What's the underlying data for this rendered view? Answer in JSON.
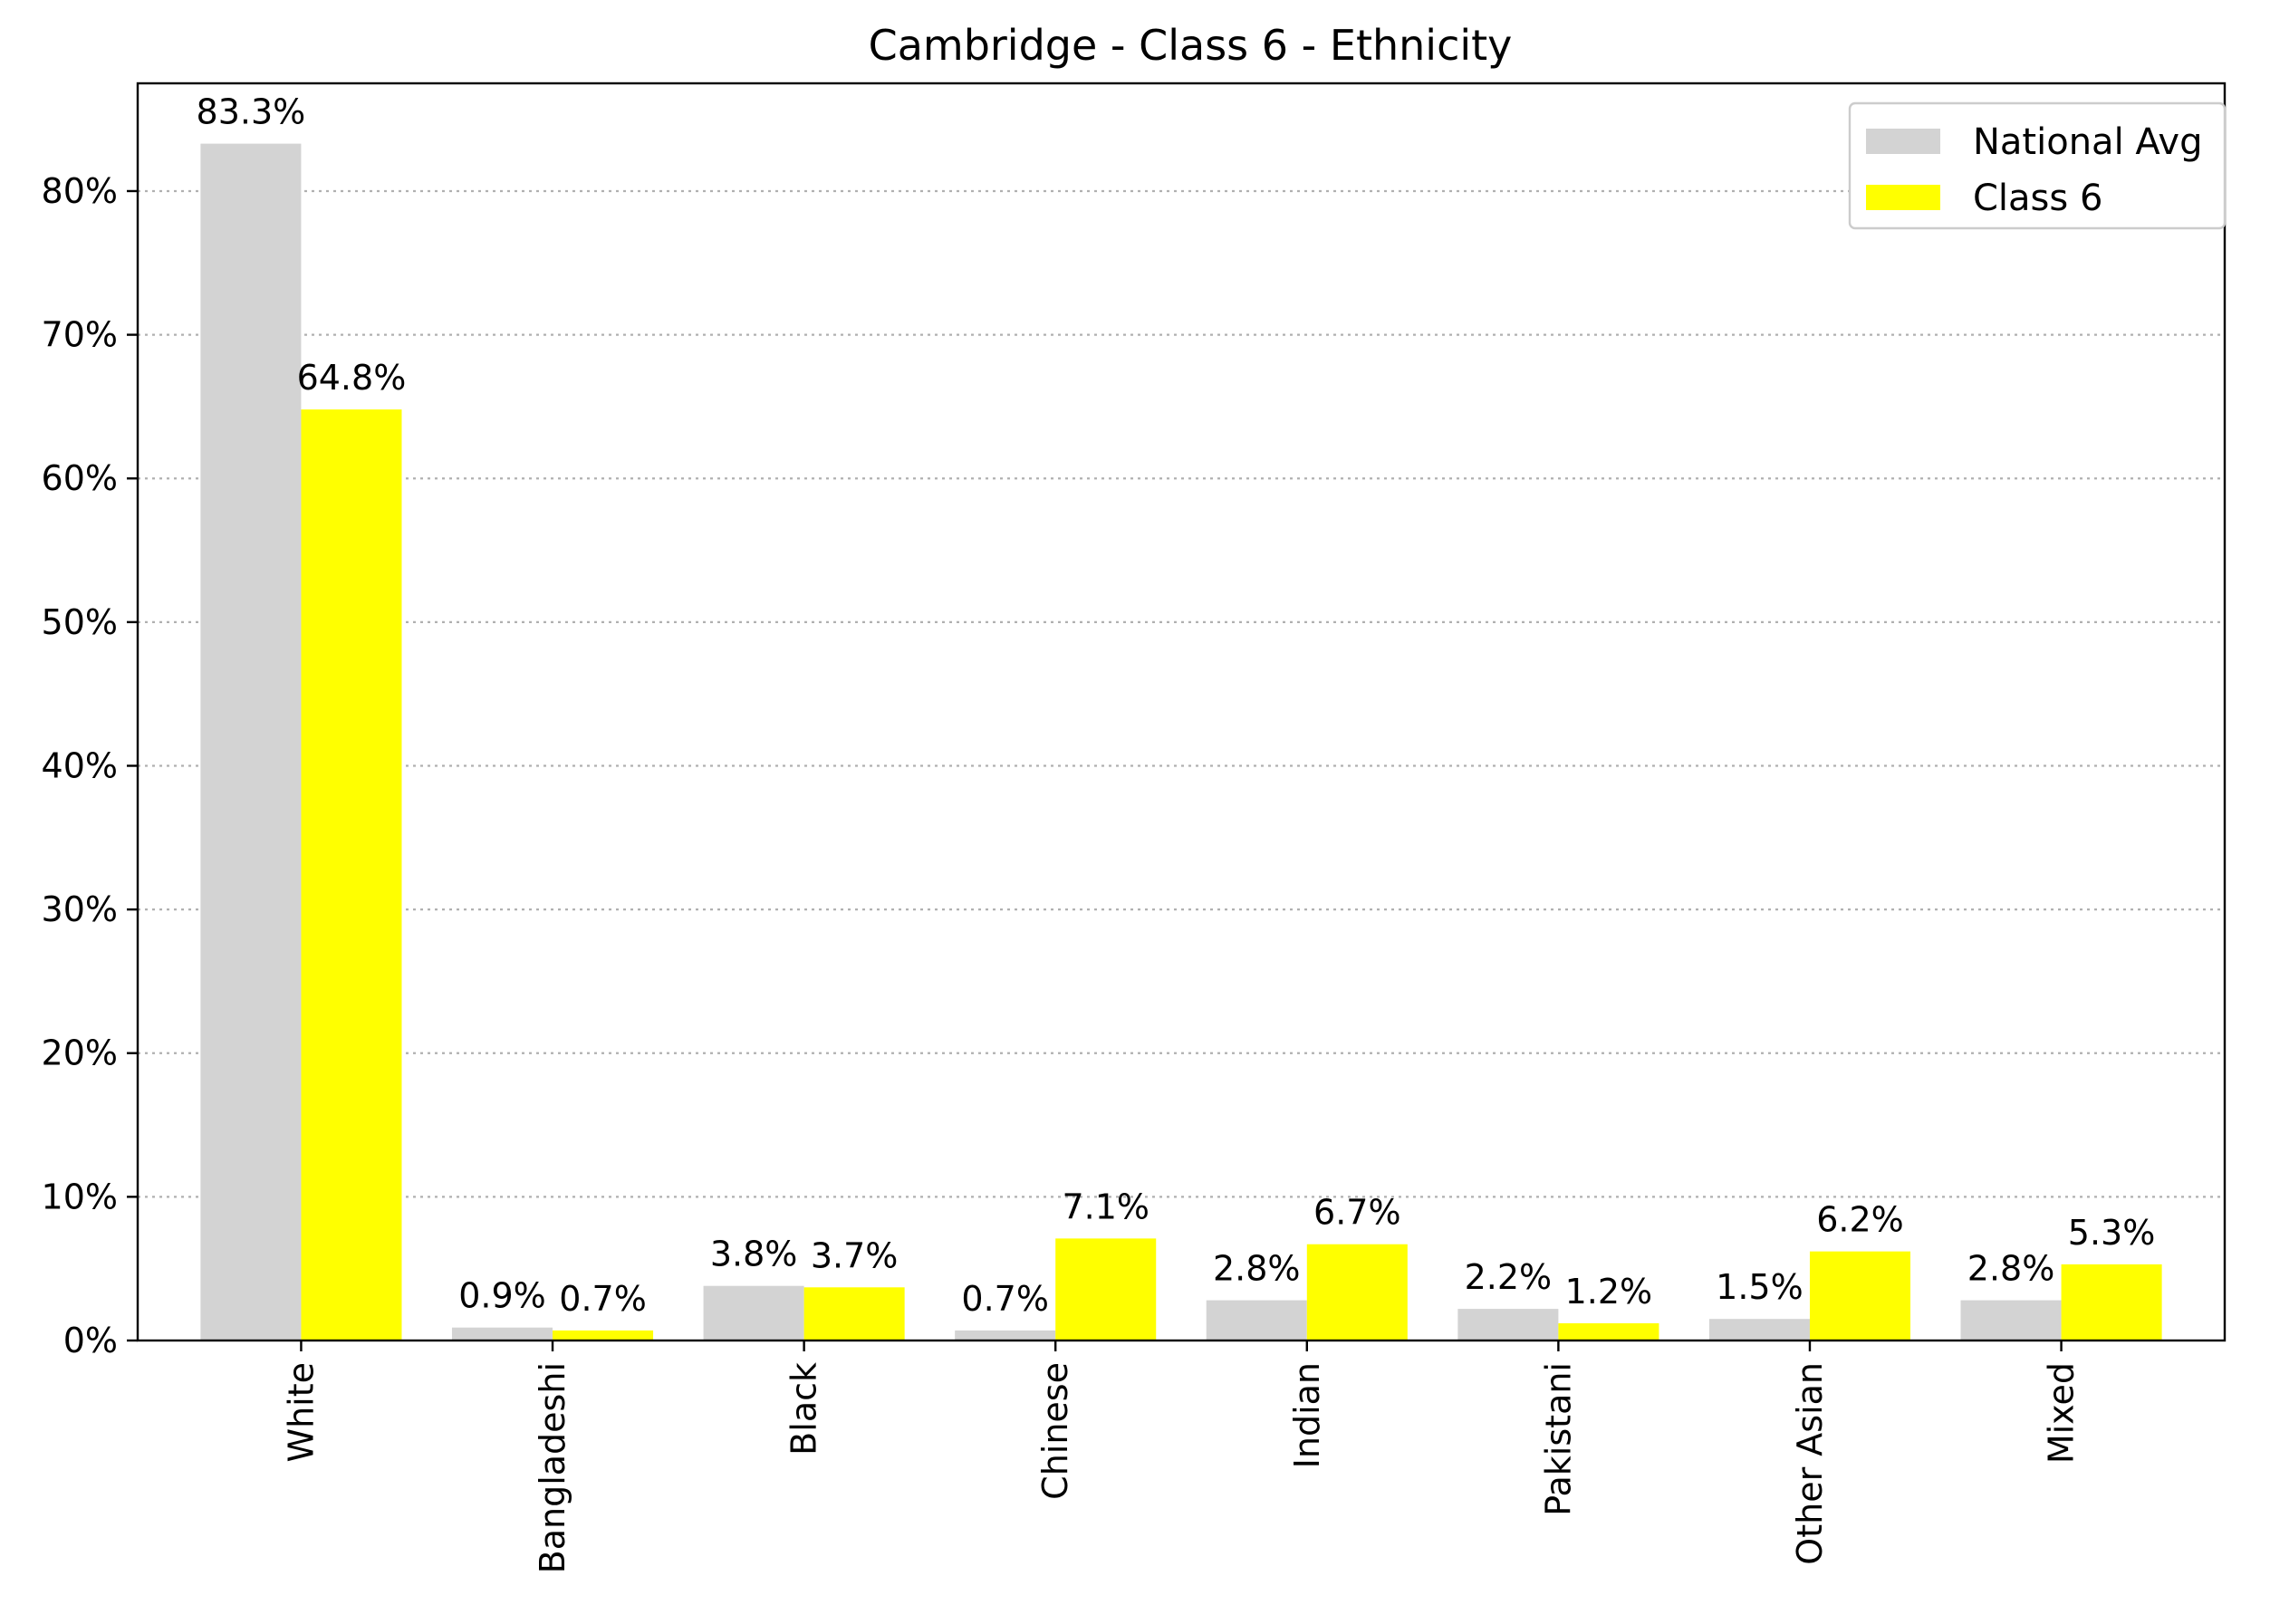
{
  "chart_data": {
    "type": "bar",
    "title": "Cambridge - Class 6 - Ethnicity",
    "xlabel": "",
    "ylabel": "",
    "categories": [
      "White",
      "Bangladeshi",
      "Black",
      "Chinese",
      "Indian",
      "Pakistani",
      "Other Asian",
      "Mixed"
    ],
    "series": [
      {
        "name": "National Avg",
        "color": "#d3d3d3",
        "values": [
          83.3,
          0.9,
          3.8,
          0.7,
          2.8,
          2.2,
          1.5,
          2.8
        ],
        "labels": [
          "83.3%",
          "0.9%",
          "3.8%",
          "0.7%",
          "2.8%",
          "2.2%",
          "1.5%",
          "2.8%"
        ]
      },
      {
        "name": "Class 6",
        "color": "#ffff00",
        "values": [
          64.8,
          0.7,
          3.7,
          7.1,
          6.7,
          1.2,
          6.2,
          5.3
        ],
        "labels": [
          "64.8%",
          "0.7%",
          "3.7%",
          "7.1%",
          "6.7%",
          "1.2%",
          "6.2%",
          "5.3%"
        ]
      }
    ],
    "yticks": [
      0,
      10,
      20,
      30,
      40,
      50,
      60,
      70,
      80
    ],
    "ytick_labels": [
      "0%",
      "10%",
      "20%",
      "30%",
      "40%",
      "50%",
      "60%",
      "70%",
      "80%"
    ],
    "ylim": [
      0,
      87.5
    ],
    "grid": "y-dotted",
    "legend": "top-right",
    "x_tick_rotation": "vertical"
  }
}
